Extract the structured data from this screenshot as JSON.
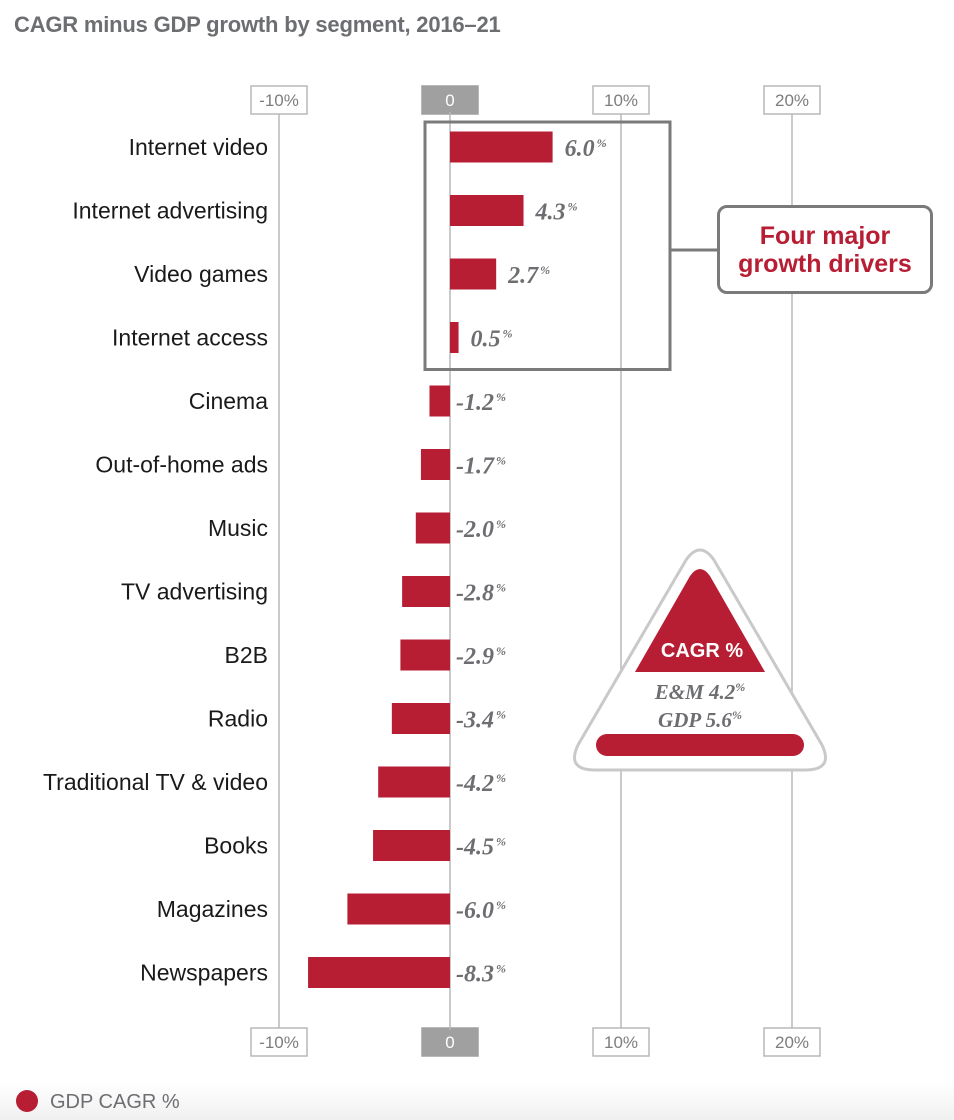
{
  "title": "CAGR minus GDP growth by segment, 2016–21",
  "colors": {
    "bar": "#b71e34",
    "axis_line": "#b8b8b8",
    "zero_box": "#a0a0a0",
    "label_gray": "#6d6e71"
  },
  "chart_data": {
    "type": "bar",
    "orientation": "horizontal",
    "title": "CAGR minus GDP growth by segment, 2016–21",
    "xlim": [
      -10,
      20
    ],
    "xticks": [
      -10,
      0,
      10,
      20
    ],
    "xtick_labels": [
      "-10%",
      "0",
      "10%",
      "20%"
    ],
    "categories": [
      "Internet video",
      "Internet advertising",
      "Video games",
      "Internet access",
      "Cinema",
      "Out-of-home ads",
      "Music",
      "TV advertising",
      "B2B",
      "Radio",
      "Traditional TV & video",
      "Books",
      "Magazines",
      "Newspapers"
    ],
    "values": [
      6.0,
      4.3,
      2.7,
      0.5,
      -1.2,
      -1.7,
      -2.0,
      -2.8,
      -2.9,
      -3.4,
      -4.2,
      -4.5,
      -6.0,
      -8.3
    ],
    "value_labels": [
      "6.0",
      "4.3",
      "2.7",
      "0.5",
      "-1.2",
      "-1.7",
      "-2.0",
      "-2.8",
      "-2.9",
      "-3.4",
      "-4.2",
      "-4.5",
      "-6.0",
      "-8.3"
    ],
    "value_suffix": "%",
    "grid": true,
    "legend": "bottom-left"
  },
  "callout": {
    "line1": "Four major",
    "line2": "growth drivers"
  },
  "badge": {
    "header": "CAGR %",
    "em_label": "E&M 4.2",
    "gdp_label": "GDP 5.6",
    "pct": "%"
  },
  "legend": {
    "label": "GDP CAGR %"
  }
}
